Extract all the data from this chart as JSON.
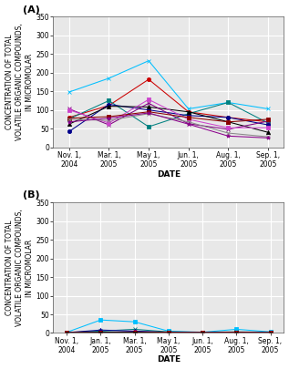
{
  "panel_A": {
    "label": "(A)",
    "x_positions": [
      0,
      1,
      2,
      3,
      4,
      5
    ],
    "x_ticklabels": [
      "Nov. 1,\n2004",
      "Mar. 1,\n2005",
      "May 1,\n2005",
      "Jun. 1,\n2005",
      "Aug. 1,\n2005",
      "Sep. 1,\n2005"
    ],
    "ylim": [
      0,
      350
    ],
    "yticks": [
      0,
      50,
      100,
      150,
      200,
      250,
      300,
      350
    ],
    "series": [
      {
        "color": "#00BFFF",
        "marker": "x",
        "linestyle": "-",
        "values": [
          148,
          185,
          232,
          103,
          120,
          103
        ]
      },
      {
        "color": "#cc0000",
        "marker": "o",
        "linestyle": "-",
        "values": [
          80,
          112,
          182,
          95,
          80,
          68
        ]
      },
      {
        "color": "#008080",
        "marker": "s",
        "linestyle": "-",
        "values": [
          76,
          125,
          55,
          90,
          120,
          65
        ]
      },
      {
        "color": "#00008B",
        "marker": "o",
        "linestyle": "-",
        "values": [
          42,
          115,
          100,
          85,
          80,
          60
        ]
      },
      {
        "color": "#000000",
        "marker": "^",
        "linestyle": "-",
        "values": [
          62,
          110,
          108,
          95,
          68,
          40
        ]
      },
      {
        "color": "#800080",
        "marker": "x",
        "linestyle": "-",
        "values": [
          103,
          60,
          118,
          63,
          48,
          70
        ]
      },
      {
        "color": "#cc44cc",
        "marker": "s",
        "linestyle": "-",
        "values": [
          100,
          65,
          128,
          75,
          52,
          52
        ]
      },
      {
        "color": "#8B0000",
        "marker": "s",
        "linestyle": "-",
        "values": [
          78,
          82,
          95,
          80,
          68,
          75
        ]
      },
      {
        "color": "#888888",
        "marker": "x",
        "linestyle": "-",
        "values": [
          75,
          72,
          90,
          68,
          38,
          28
        ]
      },
      {
        "color": "#8B008B",
        "marker": "*",
        "linestyle": "-",
        "values": [
          68,
          78,
          92,
          62,
          30,
          25
        ]
      }
    ]
  },
  "panel_B": {
    "label": "(B)",
    "x_positions": [
      0,
      1,
      2,
      3,
      4,
      5,
      6
    ],
    "x_ticklabels": [
      "Nov. 1,\n2004",
      "Jan. 1,\n2005",
      "Mar. 1,\n2005",
      "May 1,\n2005",
      "Jun. 1,\n2005",
      "Aug. 1,\n2005",
      "Sep. 1,\n2005"
    ],
    "ylim": [
      0,
      350
    ],
    "yticks": [
      0,
      50,
      100,
      150,
      200,
      250,
      300,
      350
    ],
    "series": [
      {
        "color": "#00BFFF",
        "marker": "s",
        "linestyle": "-",
        "values": [
          2,
          35,
          30,
          5,
          2,
          10,
          3
        ]
      },
      {
        "color": "#008080",
        "marker": "x",
        "linestyle": "-",
        "values": [
          1,
          5,
          10,
          3,
          2,
          3,
          2
        ]
      },
      {
        "color": "#00008B",
        "marker": "^",
        "linestyle": "-",
        "values": [
          1,
          8,
          5,
          2,
          1,
          2,
          1
        ]
      },
      {
        "color": "#800080",
        "marker": "o",
        "linestyle": "-",
        "values": [
          1,
          2,
          3,
          2,
          1,
          2,
          1
        ]
      },
      {
        "color": "#cc0000",
        "marker": "s",
        "linestyle": "-",
        "values": [
          1,
          2,
          2,
          2,
          1,
          2,
          1
        ]
      },
      {
        "color": "#000000",
        "marker": "x",
        "linestyle": "-",
        "values": [
          1,
          2,
          2,
          1,
          1,
          1,
          1
        ]
      }
    ]
  },
  "ylabel": "CONCENTRATION OF TOTAL\nVOLATILE ORGANIC COMPOUNDS,\nIN MICROMOLAR",
  "xlabel": "DATE",
  "bg_color": "#e8e8e8",
  "grid_color": "#ffffff",
  "title_fontsize": 8,
  "axis_fontsize": 5.5,
  "tick_fontsize": 5.5,
  "label_fontsize": 6.5
}
